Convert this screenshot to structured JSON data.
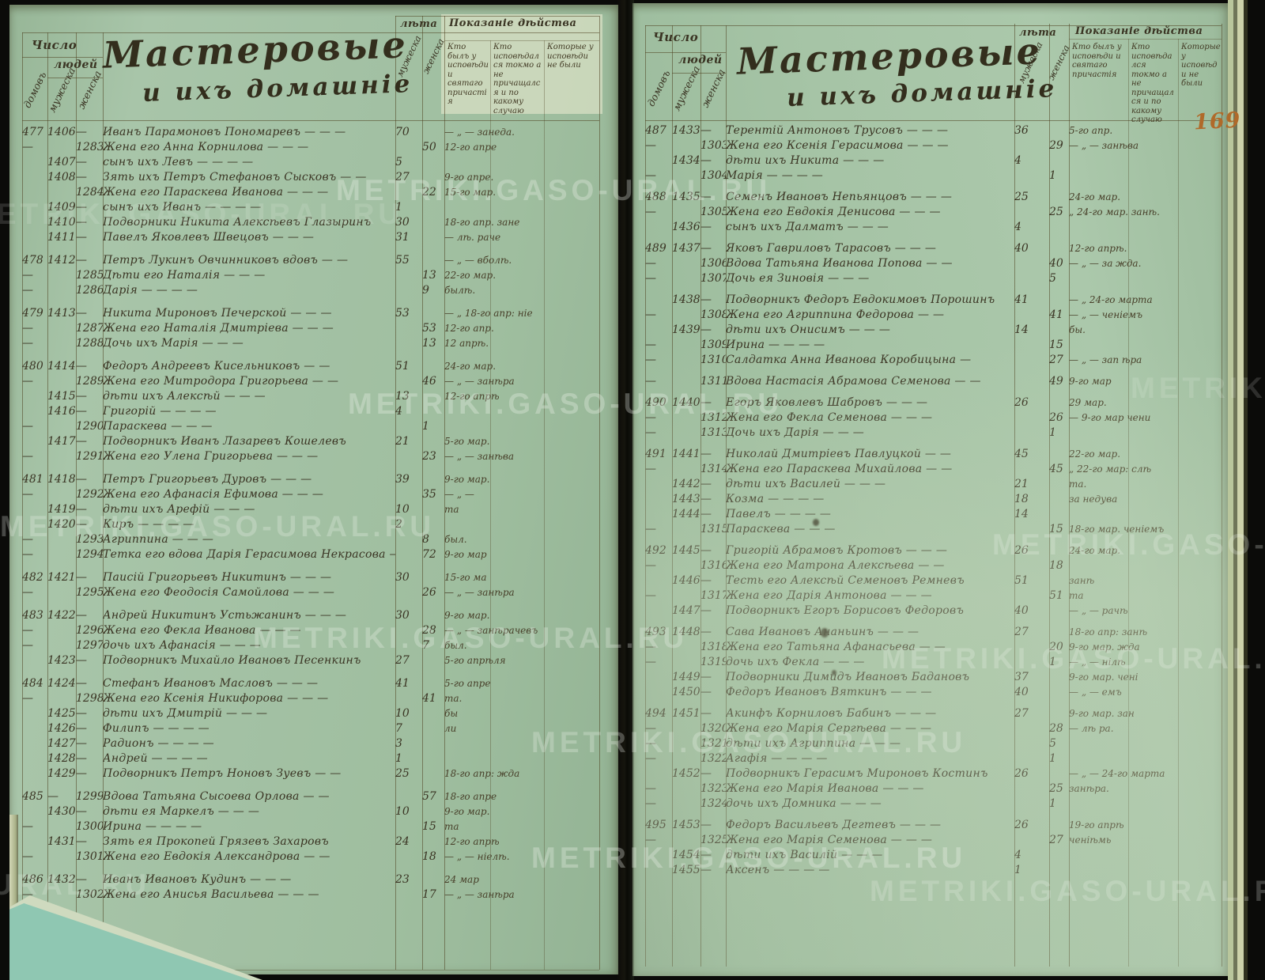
{
  "watermark_text": "METRIKI.GASO-URAL.RU",
  "watermark_tiles": [
    [
      -40,
      250,
      0.14
    ],
    [
      425,
      220,
      0.3
    ],
    [
      440,
      490,
      0.3
    ],
    [
      0,
      645,
      0.26
    ],
    [
      1255,
      668,
      0.24
    ],
    [
      320,
      786,
      0.28
    ],
    [
      1115,
      812,
      0.24
    ],
    [
      672,
      918,
      0.27
    ],
    [
      672,
      1064,
      0.3
    ],
    [
      1100,
      1106,
      0.22
    ],
    [
      -360,
      1098,
      0.2
    ],
    [
      1430,
      470,
      0.15
    ]
  ],
  "page_number": "169",
  "colors": {
    "paper": "#a5c2a6",
    "ink": "#3a3423",
    "page_number": "#b06a2a",
    "corner_teal": "#8fc7b2",
    "background": "#0b0b09"
  },
  "header": {
    "count_title": "Число",
    "count_people": "людей",
    "col_houses": "домовъ",
    "col_male": "мужеска",
    "col_female": "женска",
    "title_line1": "Мастеровые",
    "title_line2": "и ихъ домашніе",
    "age_title": "лѣта",
    "age_male": "мужеска",
    "age_female": "женска",
    "deed_title": "Показаніе дѣйства",
    "deed_col1": "Кто былъ у исповѣди и святаго причастія",
    "deed_col2": "Кто исповѣдался токмо а не причащался и по какому случаю",
    "deed_col3": "Которые у исповѣди не были"
  },
  "left_rows": [
    [
      "477",
      "1406",
      "—",
      "Иванъ Парамоновъ Пономаревъ — — —",
      "70",
      "",
      "— „ — занеда.",
      0
    ],
    [
      "—",
      "",
      "1283",
      "Жена его Анна Корнилова — — —",
      "",
      "50",
      "12-го апре",
      0
    ],
    [
      "",
      "1407",
      "—",
      "сынъ ихъ Левъ — — — —",
      "5",
      "",
      "",
      0
    ],
    [
      "",
      "1408",
      "—",
      "Зять ихъ Петръ Стефановъ Сысковъ — —",
      "27",
      "",
      "9-го апре.",
      0
    ],
    [
      "",
      "",
      "1284",
      "Жена его Параскева Иванова — — —",
      "",
      "22",
      "15-го мар.",
      0
    ],
    [
      "",
      "1409",
      "—",
      "сынъ ихъ Иванъ — — — —",
      "1",
      "",
      "",
      0
    ],
    [
      "",
      "1410",
      "—",
      "Подворники Никита Алексѣевъ Глазыринъ",
      "30",
      "",
      "18-го апр. зане",
      0
    ],
    [
      "",
      "1411",
      "—",
      "Павелъ Яковлевъ Швецовъ — — —",
      "31",
      "",
      "— лѣ. раче",
      0
    ],
    [
      "478",
      "1412",
      "—",
      "Петръ Лукинъ Овчинниковъ вдовъ — —",
      "55",
      "",
      "— „ — вболѣ.",
      1
    ],
    [
      "—",
      "",
      "1285",
      "Дѣти его Наталія — — —",
      "",
      "13",
      "22-го мар.",
      0
    ],
    [
      "—",
      "",
      "1286",
      "Дарія — — — —",
      "",
      "9",
      "былѣ.",
      0
    ],
    [
      "479",
      "1413",
      "—",
      "Никита Мироновъ Печерской — — —",
      "53",
      "",
      "— „ 18-го апр: ніе",
      1
    ],
    [
      "—",
      "",
      "1287",
      "Жена его Наталія Дмитріева — — —",
      "",
      "53",
      "12-го апр.",
      0
    ],
    [
      "—",
      "",
      "1288",
      "Дочь ихъ Марія — — —",
      "",
      "13",
      "12 апрѣ.",
      0
    ],
    [
      "480",
      "1414",
      "—",
      "Федоръ Андреевъ Кисельниковъ — —",
      "51",
      "",
      "24-го мар.",
      1
    ],
    [
      "—",
      "",
      "1289",
      "Жена его Митродора Григорьева — —",
      "",
      "46",
      "— „ — занѣра",
      0
    ],
    [
      "",
      "1415",
      "—",
      "дѣти ихъ Алексѣй — — —",
      "13",
      "",
      "12-го апрѣ",
      0
    ],
    [
      "",
      "1416",
      "—",
      "Григорій — — — —",
      "4",
      "",
      "",
      0
    ],
    [
      "—",
      "",
      "1290",
      "Параскева — — —",
      "",
      "1",
      "",
      0
    ],
    [
      "",
      "1417",
      "—",
      "Подворникъ Иванъ Лазаревъ Кошелевъ",
      "21",
      "",
      "5-го мар.",
      0
    ],
    [
      "—",
      "",
      "1291",
      "Жена его Улена Григорьева — — —",
      "",
      "23",
      "— „ — занѣва",
      0
    ],
    [
      "481",
      "1418",
      "—",
      "Петръ Григорьевъ Дуровъ — — —",
      "39",
      "",
      "9-го мар.",
      1
    ],
    [
      "—",
      "",
      "1292",
      "Жена его Афанасія Ефимова — — —",
      "",
      "35",
      "— „ —",
      0
    ],
    [
      "",
      "1419",
      "—",
      "дѣти ихъ Арефій — — —",
      "10",
      "",
      "та",
      0
    ],
    [
      "",
      "1420",
      "—",
      "Киръ — — — —",
      "2",
      "",
      "",
      0
    ],
    [
      "—",
      "",
      "1293",
      "Агриппина — — —",
      "",
      "8",
      "был.",
      0
    ],
    [
      "—",
      "",
      "1294",
      "Тетка его вдова Дарія Герасимова Некрасова —",
      "",
      "72",
      "9-го мар",
      0
    ],
    [
      "482",
      "1421",
      "—",
      "Паисій Григорьевъ Никитинъ — — —",
      "30",
      "",
      "15-го ма",
      1
    ],
    [
      "—",
      "",
      "1295",
      "Жена его Феодосія Самойлова — — —",
      "",
      "26",
      "— „ — занѣра",
      0
    ],
    [
      "483",
      "1422",
      "—",
      "Андрей Никитинъ Устьжанинъ — — —",
      "30",
      "",
      "9-го мар.",
      1
    ],
    [
      "—",
      "",
      "1296",
      "Жена его Фекла Иванова — — —",
      "",
      "28",
      "— „ — занѣрачевъ",
      0
    ],
    [
      "—",
      "",
      "1297",
      "дочь ихъ Афанасія — — —",
      "",
      "7",
      "был.",
      0
    ],
    [
      "",
      "1423",
      "—",
      "Подворникъ Михайло Ивановъ Песенкинъ",
      "27",
      "",
      "5-го апрѣля",
      0
    ],
    [
      "484",
      "1424",
      "—",
      "Стефанъ Ивановъ Масловъ — — —",
      "41",
      "",
      "5-го апре",
      1
    ],
    [
      "—",
      "",
      "1298",
      "Жена его Ксенія Никифорова — — —",
      "",
      "41",
      "та.",
      0
    ],
    [
      "",
      "1425",
      "—",
      "дѣти ихъ Дмитрій — — —",
      "10",
      "",
      "бы",
      0
    ],
    [
      "",
      "1426",
      "—",
      "Филипъ — — — —",
      "7",
      "",
      "ли",
      0
    ],
    [
      "",
      "1427",
      "—",
      "Радионъ — — — —",
      "3",
      "",
      "",
      0
    ],
    [
      "",
      "1428",
      "—",
      "Андрей — — — —",
      "1",
      "",
      "",
      0
    ],
    [
      "",
      "1429",
      "—",
      "Подворникъ Петръ Ноновъ Зуевъ — —",
      "25",
      "",
      "18-го апр: жда",
      0
    ],
    [
      "485",
      "—",
      "1299",
      "Вдова Татьяна Сысоева Орлова — —",
      "",
      "57",
      "18-го апре",
      1
    ],
    [
      "",
      "1430",
      "—",
      "дѣти ея Маркелъ — — —",
      "10",
      "",
      "9-го мар.",
      0
    ],
    [
      "—",
      "",
      "1300",
      "Ирина — — — —",
      "",
      "15",
      "та",
      0
    ],
    [
      "",
      "1431",
      "—",
      "Зять ея Прокопей Грязевъ Захаровъ",
      "24",
      "",
      "12-го апрѣ",
      0
    ],
    [
      "—",
      "",
      "1301",
      "Жена его Евдокія Александрова — —",
      "",
      "18",
      "— „ — ніелѣ.",
      0
    ],
    [
      "486",
      "1432",
      "—",
      "Иванъ Ивановъ Кудинъ — — —",
      "23",
      "",
      "24 мар",
      1
    ],
    [
      "—",
      "",
      "1302",
      "Жена его Анисья Васильева — — —",
      "",
      "17",
      "— „ — занѣра",
      0
    ]
  ],
  "right_rows": [
    [
      "487",
      "1433",
      "—",
      "Терентій Антоновъ Трусовъ — — —",
      "36",
      "",
      "5-го апр.",
      0
    ],
    [
      "—",
      "",
      "1303",
      "Жена его Ксенія Герасимова — — —",
      "",
      "29",
      "— „ — занѣва",
      0
    ],
    [
      "",
      "1434",
      "—",
      "дѣти ихъ Никита — — —",
      "4",
      "",
      "",
      0
    ],
    [
      "—",
      "",
      "1304",
      "Марія — — — —",
      "",
      "1",
      "",
      0
    ],
    [
      "488",
      "1435",
      "—",
      "Семенъ Ивановъ Непьянцовъ — — —",
      "25",
      "",
      "24-го мар.",
      1
    ],
    [
      "—",
      "",
      "1305",
      "Жена его Евдокія Денисова — — —",
      "",
      "25",
      "„ 24-го мар. занѣ.",
      0
    ],
    [
      "",
      "1436",
      "—",
      "сынъ ихъ Далматъ — — —",
      "4",
      "",
      "",
      0
    ],
    [
      "489",
      "1437",
      "—",
      "Яковъ Гавриловъ Тарасовъ — — —",
      "40",
      "",
      "12-го апрѣ.",
      1
    ],
    [
      "—",
      "",
      "1306",
      "Вдова Татьяна Иванова Попова — —",
      "",
      "40",
      "— „ — за жда.",
      0
    ],
    [
      "—",
      "",
      "1307",
      "Дочь ея Зиновія — — —",
      "",
      "5",
      "",
      0
    ],
    [
      "",
      "1438",
      "—",
      "Подворникъ Федоръ Евдокимовъ Порошинъ",
      "41",
      "",
      "— „ 24-го марта",
      1
    ],
    [
      "—",
      "",
      "1308",
      "Жена его Агриппина Федорова — —",
      "",
      "41",
      "— „ — ченіемъ",
      0
    ],
    [
      "",
      "1439",
      "—",
      "дѣти ихъ Онисимъ — — —",
      "14",
      "",
      "бы.",
      0
    ],
    [
      "—",
      "",
      "1309",
      "Ирина — — — —",
      "",
      "15",
      "",
      0
    ],
    [
      "—",
      "",
      "1310",
      "Салдатка Анна Иванова Коробицына —",
      "",
      "27",
      "— „ — зап ѣра",
      0
    ],
    [
      "—",
      "",
      "1311",
      "Вдова Настасія Абрамова Семенова — —",
      "",
      "49",
      "9-го мар",
      1
    ],
    [
      "490",
      "1440",
      "—",
      "Егоръ Яковлевъ Шабровъ — — —",
      "26",
      "",
      "29 мар.",
      1
    ],
    [
      "—",
      "",
      "1312",
      "Жена его Фекла Семенова — — —",
      "",
      "26",
      "— 9-го мар чени",
      0
    ],
    [
      "—",
      "",
      "1313",
      "Дочь ихъ Дарія — — —",
      "",
      "1",
      "",
      0
    ],
    [
      "491",
      "1441",
      "—",
      "Николай Дмитріевъ Павлуцкой — —",
      "45",
      "",
      "22-го мар.",
      1
    ],
    [
      "—",
      "",
      "1314",
      "Жена его Параскева Михайлова — —",
      "",
      "45",
      "„ 22-го мар: слѣ",
      0
    ],
    [
      "",
      "1442",
      "—",
      "дѣти ихъ Василей — — —",
      "21",
      "",
      "та.",
      0
    ],
    [
      "",
      "1443",
      "—",
      "Козма — — — —",
      "18",
      "",
      "за недува",
      0
    ],
    [
      "",
      "1444",
      "—",
      "Павелъ — — — —",
      "14",
      "",
      "",
      0
    ],
    [
      "—",
      "",
      "1315",
      "Параскева — — —",
      "",
      "15",
      "18-го мар. ченіемъ",
      0
    ],
    [
      "492",
      "1445",
      "—",
      "Григорій Абрамовъ Кротовъ — — —",
      "26",
      "",
      "24-го мар.",
      1
    ],
    [
      "—",
      "",
      "1316",
      "Жена его Матрона Алексѣева — —",
      "",
      "18",
      "",
      0
    ],
    [
      "",
      "1446",
      "—",
      "Тесть его Алексѣй Семеновъ Ремневъ",
      "51",
      "",
      "занѣ",
      0
    ],
    [
      "—",
      "",
      "1317",
      "Жена его Дарія Антонова — — —",
      "",
      "51",
      "та",
      0
    ],
    [
      "",
      "1447",
      "—",
      "Подворникъ Егоръ Борисовъ Федоровъ",
      "40",
      "",
      "— „ — рачѣ",
      0
    ],
    [
      "493",
      "1448",
      "—",
      "Сава Ивановъ Ананьинъ — — —",
      "27",
      "",
      "18-го апр: занѣ",
      1
    ],
    [
      "—",
      "",
      "1318",
      "Жена его Татьяна Афанасьева — —",
      "",
      "20",
      "9-го мар. жда",
      0
    ],
    [
      "—",
      "",
      "1319",
      "дочь ихъ Фекла — — —",
      "",
      "1",
      "— „ — нілѣ",
      0
    ],
    [
      "",
      "1449",
      "—",
      "Подворники Димидъ Ивановъ Бадановъ",
      "37",
      "",
      "9-го мар. чені",
      0
    ],
    [
      "",
      "1450",
      "—",
      "Федоръ Ивановъ Вяткинъ — — —",
      "40",
      "",
      "— „ — емъ",
      0
    ],
    [
      "494",
      "1451",
      "—",
      "Акинфъ Корниловъ Бабинъ — — —",
      "27",
      "",
      "9-го мар. зан",
      1
    ],
    [
      "—",
      "",
      "1320",
      "Жена его Марія Сергѣева — — —",
      "",
      "28",
      "— лѣ ра.",
      0
    ],
    [
      "—",
      "",
      "1321",
      "дѣти ихъ Агриппина — — —",
      "",
      "5",
      "",
      0
    ],
    [
      "—",
      "",
      "1322",
      "Агафія — — — —",
      "",
      "1",
      "",
      0
    ],
    [
      "",
      "1452",
      "—",
      "Подворникъ Герасимъ Мироновъ Костинъ",
      "26",
      "",
      "— „ — 24-го марта",
      0
    ],
    [
      "—",
      "",
      "1323",
      "Жена его Марія Иванова — — —",
      "",
      "25",
      "занѣра.",
      0
    ],
    [
      "—",
      "",
      "1324",
      "дочь ихъ Домника — — —",
      "",
      "1",
      "",
      0
    ],
    [
      "495",
      "1453",
      "—",
      "Федоръ Васильевъ Дегтевъ — — —",
      "26",
      "",
      "19-го апрѣ",
      1
    ],
    [
      "—",
      "",
      "1325",
      "Жена его Марія Семенова — — —",
      "",
      "27",
      "ченіѣмь",
      0
    ],
    [
      "",
      "1454",
      "—",
      "дѣти ихъ Василій — — —",
      "4",
      "",
      "",
      0
    ],
    [
      "",
      "1455",
      "—",
      "Аксенъ — — — —",
      "1",
      "",
      "",
      0
    ]
  ]
}
